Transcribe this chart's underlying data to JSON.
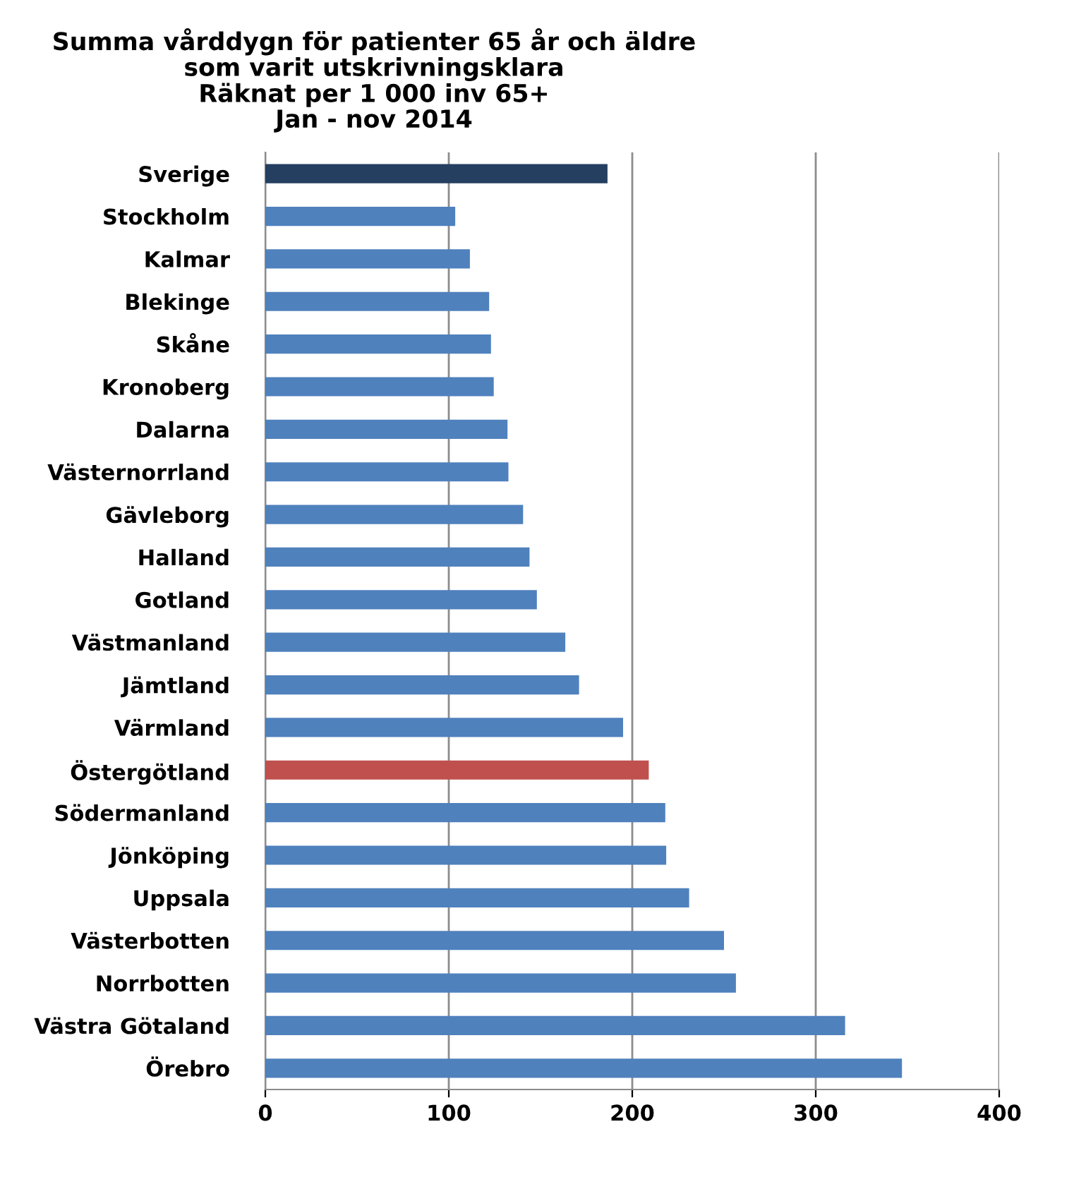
{
  "chart_data": {
    "type": "bar",
    "orientation": "horizontal",
    "title": "Summa vårddygn för patienter 65 år och äldre\nsom varit utskrivningsklara\nRäknat per 1 000 inv 65+\nJan - nov 2014",
    "categories": [
      "Sverige",
      "Stockholm",
      "Kalmar",
      "Blekinge",
      "Skåne",
      "Kronoberg",
      "Dalarna",
      "Västernorrland",
      "Gävleborg",
      "Halland",
      "Gotland",
      "Västmanland",
      "Jämtland",
      "Värmland",
      "Östergötland",
      "Södermanland",
      "Jönköping",
      "Uppsala",
      "Västerbotten",
      "Norrbotten",
      "Västra Götaland",
      "Örebro"
    ],
    "values": [
      186.5,
      103.5,
      111.5,
      122,
      123,
      124.5,
      132,
      132.5,
      140.5,
      144,
      148,
      163.5,
      171,
      195,
      209,
      218,
      218.5,
      231,
      250,
      256.5,
      316,
      347
    ],
    "colors": [
      "#243f60",
      "#4f81bd",
      "#4f81bd",
      "#4f81bd",
      "#4f81bd",
      "#4f81bd",
      "#4f81bd",
      "#4f81bd",
      "#4f81bd",
      "#4f81bd",
      "#4f81bd",
      "#4f81bd",
      "#4f81bd",
      "#4f81bd",
      "#c0504d",
      "#4f81bd",
      "#4f81bd",
      "#4f81bd",
      "#4f81bd",
      "#4f81bd",
      "#4f81bd",
      "#4f81bd"
    ],
    "xlim": [
      0,
      400
    ],
    "xticks": [
      0,
      100,
      200,
      300,
      400
    ],
    "grid": "x",
    "legend": false
  }
}
